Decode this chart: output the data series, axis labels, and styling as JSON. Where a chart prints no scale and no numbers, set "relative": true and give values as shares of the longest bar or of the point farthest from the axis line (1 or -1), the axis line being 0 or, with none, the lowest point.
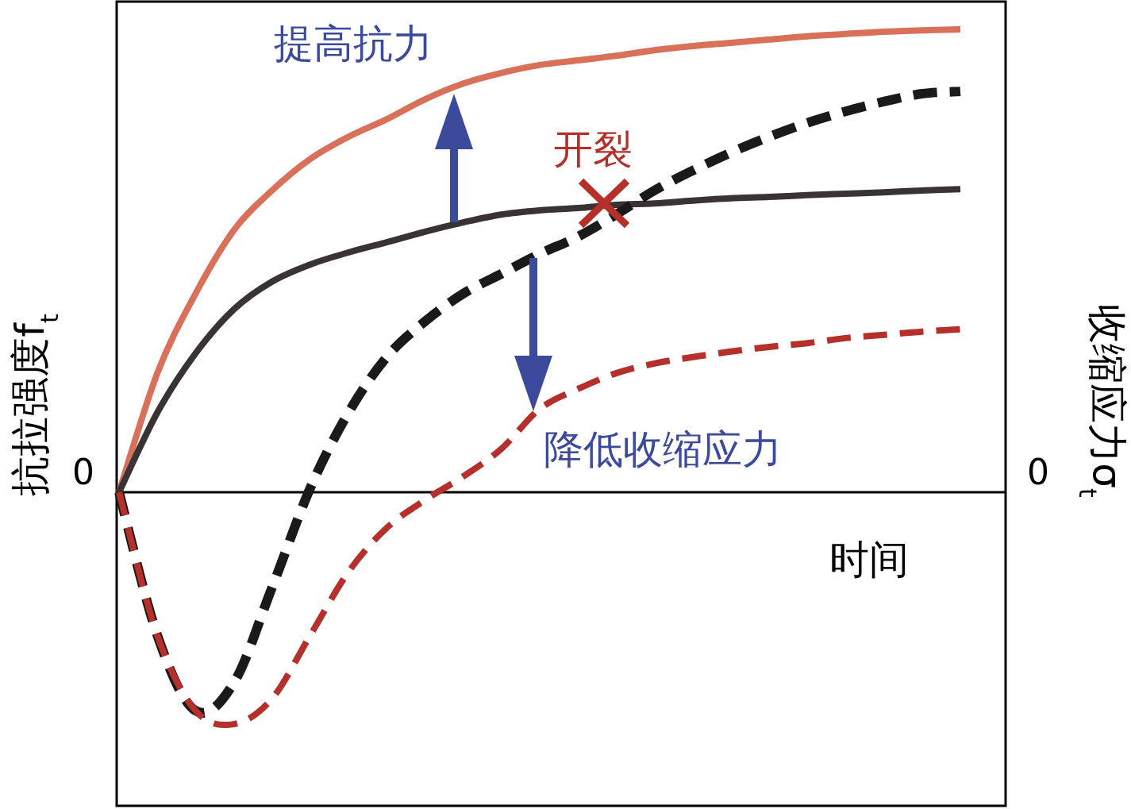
{
  "chart_data": {
    "type": "line",
    "relative": true,
    "xlabel": "时间",
    "ylabel": "抗拉强度f$_{t}$",
    "y2label": "收缩应力σ$_{t}$",
    "categories": [
      null,
      null,
      null,
      null,
      null,
      null,
      null,
      null,
      null,
      null,
      null,
      null,
      null,
      null,
      null,
      null,
      null,
      null,
      null,
      null,
      null,
      null,
      null
    ],
    "series": [
      {
        "color": "#d9705a",
        "line_style": "solid",
        "values": [
          0,
          0.257,
          0.429,
          0.566,
          0.652,
          0.72,
          0.768,
          0.806,
          0.849,
          0.883,
          0.906,
          0.923,
          0.933,
          0.943,
          0.955,
          0.964,
          0.971,
          0.978,
          0.985,
          0.99,
          0.995,
          0.998,
          1.0
        ]
      },
      {
        "color": "#3a3333",
        "line_style": "solid",
        "values": [
          0,
          0.172,
          0.3,
          0.395,
          0.455,
          0.492,
          0.518,
          0.54,
          0.563,
          0.583,
          0.6,
          0.609,
          0.614,
          0.621,
          0.624,
          0.63,
          0.635,
          0.638,
          0.642,
          0.645,
          0.648,
          0.652,
          0.655
        ]
      },
      {
        "color": "#1a1a1a",
        "line_style": "dashed",
        "values": [
          0,
          -0.309,
          -0.472,
          -0.412,
          -0.206,
          0.009,
          0.172,
          0.292,
          0.369,
          0.429,
          0.472,
          0.515,
          0.552,
          0.6,
          0.652,
          0.695,
          0.734,
          0.768,
          0.798,
          0.823,
          0.844,
          0.861,
          0.866
        ]
      },
      {
        "color": "#b5302a",
        "line_style": "dashed",
        "values": [
          0,
          -0.309,
          -0.472,
          -0.501,
          -0.446,
          -0.309,
          -0.172,
          -0.077,
          -0.017,
          0.034,
          0.094,
          0.18,
          0.223,
          0.257,
          0.278,
          0.292,
          0.304,
          0.314,
          0.322,
          0.333,
          0.34,
          0.347,
          0.352
        ]
      }
    ],
    "annotations": [
      "0",
      "0",
      "提高抗力",
      "开裂",
      "降低收缩应力"
    ]
  }
}
